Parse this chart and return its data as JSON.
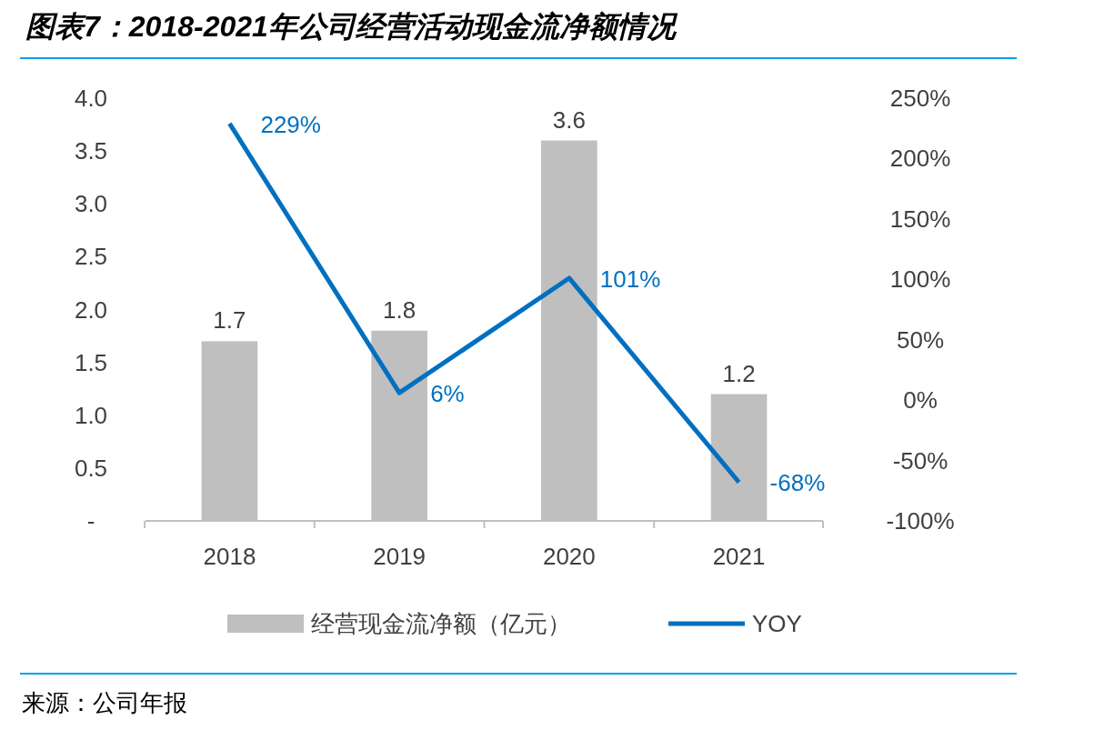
{
  "chart_data": {
    "type": "bar",
    "title": "图表7：2018-2021年公司经营活动现金流净额情况",
    "categories": [
      "2018",
      "2019",
      "2020",
      "2021"
    ],
    "series": [
      {
        "name": "经营现金流净额（亿元）",
        "color": "#bfbfbf",
        "values": [
          1.7,
          1.8,
          3.6,
          1.2
        ],
        "value_labels": [
          "1.7",
          "1.8",
          "3.6",
          "1.2"
        ]
      },
      {
        "name": "YOY",
        "type": "line",
        "axis": "y2",
        "color": "#0070c0",
        "values": [
          229,
          6,
          101,
          -68
        ],
        "value_labels": [
          "229%",
          "6%",
          "101%",
          "-68%"
        ]
      }
    ],
    "ylim": [
      0,
      4
    ],
    "yticks": [
      {
        "value": 0,
        "label": "-"
      },
      {
        "value": 0.5,
        "label": "0.5"
      },
      {
        "value": 1,
        "label": "1.0"
      },
      {
        "value": 1.5,
        "label": "1.5"
      },
      {
        "value": 2,
        "label": "2.0"
      },
      {
        "value": 2.5,
        "label": "2.5"
      },
      {
        "value": 3,
        "label": "3.0"
      },
      {
        "value": 3.5,
        "label": "3.5"
      },
      {
        "value": 4,
        "label": "4.0"
      }
    ],
    "y2lim": [
      -100,
      250
    ],
    "y2ticks": [
      {
        "value": -100,
        "label": "-100%"
      },
      {
        "value": -50,
        "label": "-50%"
      },
      {
        "value": 0,
        "label": "0%"
      },
      {
        "value": 50,
        "label": "50%"
      },
      {
        "value": 100,
        "label": "100%"
      },
      {
        "value": 150,
        "label": "150%"
      },
      {
        "value": 200,
        "label": "200%"
      },
      {
        "value": 250,
        "label": "250%"
      }
    ],
    "grid": false,
    "legend": "bottom",
    "marker": "none",
    "line_style": "solid",
    "annotations": [
      "来源：公司年报"
    ]
  }
}
